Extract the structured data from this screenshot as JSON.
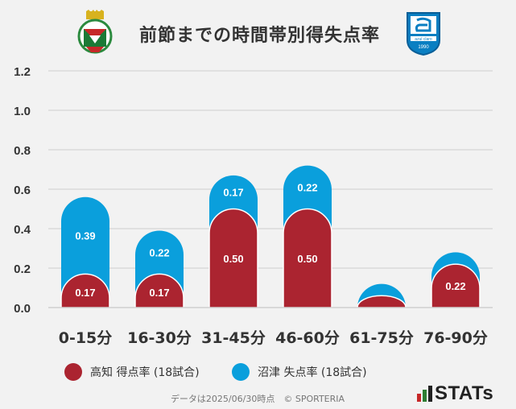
{
  "title": "前節までの時間帯別得失点率",
  "chart_data": {
    "type": "bar",
    "stacked": true,
    "categories": [
      "0-15分",
      "16-30分",
      "31-45分",
      "46-60分",
      "61-75分",
      "76-90分"
    ],
    "series": [
      {
        "name": "高知 得点率 (18試合)",
        "color": "#ab2430",
        "values": [
          0.17,
          0.17,
          0.5,
          0.5,
          0.06,
          0.22
        ],
        "labels": [
          "0.17",
          "0.17",
          "0.50",
          "0.50",
          "",
          "0.22"
        ]
      },
      {
        "name": "沼津 失点率 (18試合)",
        "color": "#0a9fdc",
        "values": [
          0.39,
          0.22,
          0.17,
          0.22,
          0.06,
          0.06
        ],
        "labels": [
          "0.39",
          "0.22",
          "0.17",
          "0.22",
          "",
          ""
        ]
      }
    ],
    "y_ticks": [
      "0.0",
      "0.2",
      "0.4",
      "0.6",
      "0.8",
      "1.0",
      "1.2"
    ],
    "ylim": [
      0,
      1.2
    ],
    "grid": true,
    "legend": "bottom"
  },
  "footer": "データは2025/06/30時点　© SPORTERIA",
  "branding": "STATs",
  "logos": {
    "left": "kochi-crest-icon",
    "right": "numazu-crest-icon",
    "right_text": "azul claro",
    "right_year": "1990"
  }
}
